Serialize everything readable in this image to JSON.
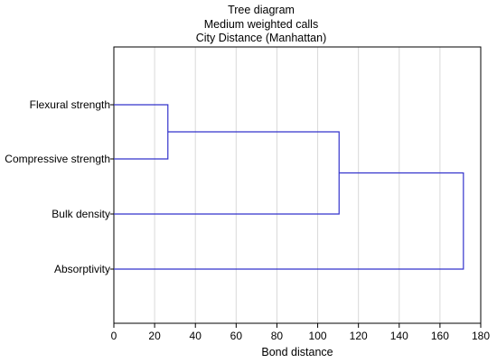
{
  "chart_data": {
    "type": "dendrogram",
    "title": [
      "Tree diagram",
      "Medium weighted calls",
      "City Distance (Manhattan)"
    ],
    "xlabel": "Bond distance",
    "xlim": [
      0,
      180
    ],
    "xticks": [
      0,
      20,
      40,
      60,
      80,
      100,
      120,
      140,
      160,
      180
    ],
    "grid": "vertical",
    "leaves": [
      "Flexural strength",
      "Compressive strength",
      "Bulk density",
      "Absorptivity"
    ],
    "merges": [
      {
        "left": "Flexural strength",
        "right": "Compressive strength",
        "distance": 26.5
      },
      {
        "left": "cluster-1",
        "right": "Bulk density",
        "distance": 110.5
      },
      {
        "left": "cluster-2",
        "right": "Absorptivity",
        "distance": 171.5
      }
    ],
    "colors": {
      "lines": "#3333cc",
      "grid": "#d9d9d9",
      "axis": "#000000"
    }
  }
}
